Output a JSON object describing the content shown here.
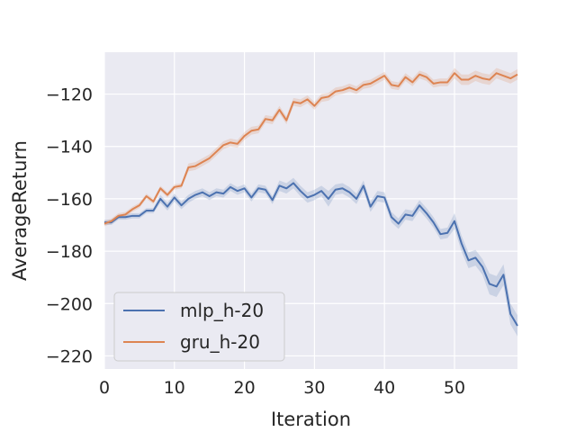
{
  "chart_data": {
    "type": "line",
    "xlabel": "Iteration",
    "ylabel": "AverageReturn",
    "xlim": [
      0,
      59
    ],
    "ylim": [
      -225,
      -104
    ],
    "xticks": [
      0,
      10,
      20,
      30,
      40,
      50
    ],
    "yticks": [
      -220,
      -200,
      -180,
      -160,
      -140,
      -120
    ],
    "grid": true,
    "legend_position": "lower-left",
    "colors": {
      "background": "#eaeaf2",
      "grid": "#ffffff"
    },
    "series": [
      {
        "name": "mlp_h-20",
        "color": "#4c72b0",
        "x": [
          0,
          1,
          2,
          3,
          4,
          5,
          6,
          7,
          8,
          9,
          10,
          11,
          12,
          13,
          14,
          15,
          16,
          17,
          18,
          19,
          20,
          21,
          22,
          23,
          24,
          25,
          26,
          27,
          28,
          29,
          30,
          31,
          32,
          33,
          34,
          35,
          36,
          37,
          38,
          39,
          40,
          41,
          42,
          43,
          44,
          45,
          46,
          47,
          48,
          49,
          50,
          51,
          52,
          53,
          54,
          55,
          56,
          57,
          58,
          59
        ],
        "y": [
          -169,
          -169,
          -167,
          -167,
          -166.5,
          -166.5,
          -164.5,
          -164.5,
          -160,
          -163,
          -159.5,
          -162.5,
          -160,
          -158.5,
          -157.5,
          -159,
          -157.5,
          -158,
          -155.5,
          -157,
          -156,
          -159.5,
          -156,
          -156.5,
          -160.5,
          -155,
          -156,
          -154,
          -157,
          -159.5,
          -158.5,
          -157,
          -160,
          -156.5,
          -156,
          -157.5,
          -160,
          -155,
          -163,
          -159,
          -159.5,
          -167,
          -169.5,
          -166,
          -166.5,
          -162.5,
          -165.5,
          -169,
          -173.5,
          -173,
          -168.5,
          -177,
          -183.5,
          -182.5,
          -186,
          -192.5,
          -193.5,
          -189,
          -204,
          -208.5
        ],
        "band": [
          1,
          1,
          1,
          1,
          1,
          1,
          1,
          1,
          1.5,
          1.5,
          1.5,
          1.5,
          1.5,
          1.5,
          1.5,
          1.5,
          1.5,
          1.5,
          1.5,
          1.5,
          1.5,
          1.5,
          1.5,
          1.5,
          1.5,
          2,
          2,
          2,
          2,
          2,
          2,
          2,
          3,
          2,
          2,
          2,
          2,
          2,
          2,
          2,
          2,
          2,
          2,
          2,
          2,
          2,
          2,
          2,
          2,
          2,
          3,
          3,
          3,
          3,
          3,
          4,
          4,
          4,
          4,
          4
        ]
      },
      {
        "name": "gru_h-20",
        "color": "#dd8452",
        "x": [
          0,
          1,
          2,
          3,
          4,
          5,
          6,
          7,
          8,
          9,
          10,
          11,
          12,
          13,
          14,
          15,
          16,
          17,
          18,
          19,
          20,
          21,
          22,
          23,
          24,
          25,
          26,
          27,
          28,
          29,
          30,
          31,
          32,
          33,
          34,
          35,
          36,
          37,
          38,
          39,
          40,
          41,
          42,
          43,
          44,
          45,
          46,
          47,
          48,
          49,
          50,
          51,
          52,
          53,
          54,
          55,
          56,
          57,
          58,
          59
        ],
        "y": [
          -169.5,
          -168.5,
          -166.5,
          -166,
          -164,
          -162.5,
          -159,
          -161,
          -156,
          -158.5,
          -155.5,
          -155,
          -148,
          -147.5,
          -146,
          -144.5,
          -142,
          -139.5,
          -138.5,
          -139,
          -136,
          -134,
          -133.5,
          -129.5,
          -130,
          -126,
          -130,
          -123,
          -123.5,
          -122,
          -124.5,
          -121.5,
          -121,
          -119,
          -118.5,
          -117.5,
          -118.5,
          -116.5,
          -116,
          -114.5,
          -113,
          -116.5,
          -117,
          -113.5,
          -115.5,
          -112.5,
          -113.5,
          -116,
          -115.5,
          -115.5,
          -112,
          -114.5,
          -114.5,
          -113,
          -114,
          -114.5,
          -112,
          -113,
          -114,
          -112.5
        ],
        "band": [
          1,
          1,
          1,
          1,
          1,
          1,
          1,
          1,
          1,
          1,
          1,
          1,
          1.5,
          1.5,
          1.5,
          1.5,
          1.5,
          1.5,
          1.5,
          1.5,
          1.5,
          1.5,
          1.5,
          1.5,
          1.5,
          1.5,
          1.5,
          1.5,
          1.5,
          1.5,
          1.5,
          1.5,
          1.5,
          1.5,
          1.5,
          1.5,
          1.5,
          1.5,
          1.5,
          1.5,
          1.5,
          1.5,
          1.5,
          1.5,
          1.5,
          1.5,
          1.5,
          1.5,
          1.5,
          1.5,
          2,
          2,
          2,
          2,
          2,
          2,
          2,
          2,
          2,
          2
        ]
      }
    ]
  }
}
